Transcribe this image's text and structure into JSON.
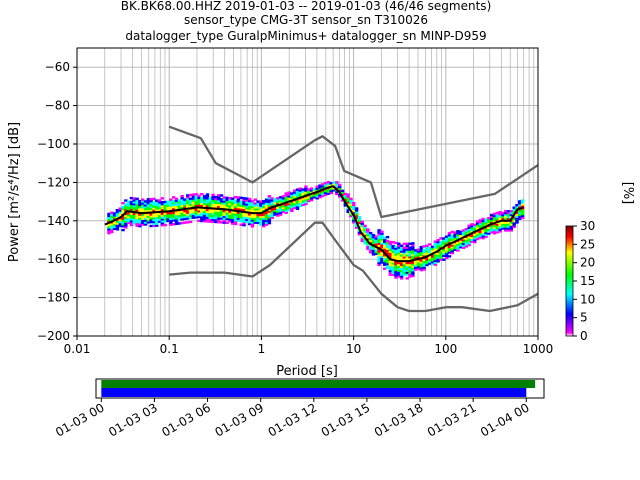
{
  "chart_data": [
    {
      "type": "ppsd",
      "title": [
        "BK.BK68.00.HHZ   2019-01-03 -- 2019-01-03  (46/46 segments)",
        "sensor_type CMG-3T sensor_sn T310026",
        "datalogger_type GuralpMinimus+ datalogger_sn MINP-D959"
      ],
      "xlabel": "Period [s]",
      "ylabel": "Power [m²/s⁴/Hz] [dB]",
      "xscale": "log",
      "xlim": [
        0.01,
        1000
      ],
      "ylim": [
        -200,
        -50
      ],
      "x_ticks": [
        0.01,
        0.1,
        1,
        10,
        100,
        1000
      ],
      "x_ticklabels": [
        "0.01",
        "0.1",
        "1",
        "10",
        "100",
        "1000"
      ],
      "y_ticks": [
        -200,
        -180,
        -160,
        -140,
        -120,
        -100,
        -80,
        -60
      ],
      "y_ticklabels": [
        "−200",
        "−180",
        "−160",
        "−140",
        "−120",
        "−100",
        "−80",
        "−60"
      ],
      "grid": true,
      "series": [
        {
          "name": "",
          "color": "#666666",
          "x": [
            0.1,
            0.22,
            0.32,
            0.8,
            3.8,
            4.6,
            6.3,
            7.9,
            15.4,
            20,
            340,
            1000
          ],
          "y": [
            -91,
            -97,
            -110,
            -120,
            -98,
            -96,
            -101,
            -114,
            -120,
            -138,
            -126,
            -111
          ]
        },
        {
          "name": "",
          "color": "#666666",
          "x": [
            0.1,
            0.17,
            0.4,
            0.8,
            1.24,
            3.8,
            4.6,
            6.3,
            10,
            12.6,
            20,
            30,
            40,
            60,
            100,
            150,
            300,
            600,
            1000
          ],
          "y": [
            -168,
            -167,
            -167,
            -169,
            -163,
            -141,
            -141,
            -150,
            -163,
            -166,
            -178,
            -185,
            -187,
            -187,
            -185,
            -185,
            -187,
            -184,
            -178
          ]
        },
        {
          "name": "",
          "color": "#000000",
          "x": [
            0.02,
            0.025,
            0.03,
            0.035,
            0.05,
            0.1,
            0.2,
            0.4,
            0.8,
            1,
            1.3,
            2,
            3,
            4,
            5,
            6,
            7,
            8,
            10,
            12,
            15,
            20,
            25,
            30,
            40,
            60,
            80,
            100,
            150,
            200,
            300,
            400,
            500,
            600,
            700
          ],
          "y": [
            -142,
            -140,
            -138,
            -135,
            -136,
            -135,
            -133,
            -134,
            -136,
            -136,
            -133,
            -130,
            -127,
            -125,
            -123,
            -122,
            -125,
            -130,
            -137,
            -146,
            -152,
            -155,
            -160,
            -161,
            -161,
            -159,
            -156,
            -153,
            -149,
            -146,
            -142,
            -140,
            -140,
            -134,
            -133
          ]
        }
      ],
      "pdf_colorbar": {
        "label": "[%]",
        "min": 0,
        "max": 30,
        "ticks": [
          0,
          5,
          10,
          15,
          20,
          25,
          30
        ],
        "colors": [
          "#ff00ff",
          "#0000ff",
          "#00ffff",
          "#00ff00",
          "#ffff00",
          "#ff0000"
        ]
      }
    },
    {
      "type": "timeline",
      "x_ticklabels": [
        "01-03 00",
        "01-03 03",
        "01-03 06",
        "01-03 09",
        "01-03 12",
        "01-03 15",
        "01-03 18",
        "01-03 21",
        "01-04 00"
      ],
      "x_range_hours": [
        -0.3,
        25.0
      ],
      "bars": [
        {
          "name": "",
          "color": "#008000",
          "start_hour": 0.0,
          "end_hour": 24.5
        },
        {
          "name": "",
          "color": "#0000ff",
          "start_hour": 0.0,
          "end_hour": 24.0
        }
      ]
    }
  ]
}
